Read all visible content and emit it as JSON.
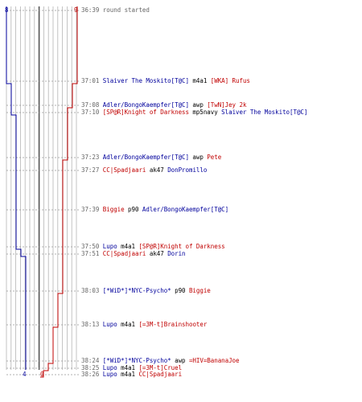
{
  "scores": {
    "blue_start": "8",
    "red_start": "9",
    "blue_end": "4",
    "red_end": "0"
  },
  "colors": {
    "blue_team": "#00009c",
    "red_team": "#c00000",
    "gridline": "#aaaaaa",
    "axis": "#555555"
  },
  "events": [
    {
      "time": "36:39",
      "parts": [
        {
          "text": "round started",
          "c": "note"
        }
      ]
    },
    {
      "time": "37:01",
      "parts": [
        {
          "text": "Slaiver The Moskito[T@C]",
          "c": "blue"
        },
        {
          "text": " m4a1 ",
          "c": "blk"
        },
        {
          "text": "[WKA] Rufus",
          "c": "red"
        }
      ]
    },
    {
      "time": "37:08",
      "parts": [
        {
          "text": "Adler/BongoKaempfer[T@C]",
          "c": "blue"
        },
        {
          "text": " awp ",
          "c": "blk"
        },
        {
          "text": "[TwN]Jey 2k",
          "c": "red"
        }
      ]
    },
    {
      "time": "37:10",
      "parts": [
        {
          "text": "[SP@R]Knight of Darkness",
          "c": "red"
        },
        {
          "text": " mp5navy ",
          "c": "blk"
        },
        {
          "text": "Slaiver The Moskito[T@C]",
          "c": "blue"
        }
      ]
    },
    {
      "time": "37:23",
      "parts": [
        {
          "text": "Adler/BongoKaempfer[T@C]",
          "c": "blue"
        },
        {
          "text": " awp ",
          "c": "blk"
        },
        {
          "text": "Pete",
          "c": "red"
        }
      ]
    },
    {
      "time": "37:27",
      "parts": [
        {
          "text": "CC|Spadjaari",
          "c": "red"
        },
        {
          "text": " ak47 ",
          "c": "blk"
        },
        {
          "text": "DonPromillo",
          "c": "blue"
        }
      ]
    },
    {
      "time": "37:39",
      "parts": [
        {
          "text": "Biggie",
          "c": "red"
        },
        {
          "text": " p90 ",
          "c": "blk"
        },
        {
          "text": "Adler/BongoKaempfer[T@C]",
          "c": "blue"
        }
      ]
    },
    {
      "time": "37:50",
      "parts": [
        {
          "text": "Lupo",
          "c": "blue"
        },
        {
          "text": " m4a1 ",
          "c": "blk"
        },
        {
          "text": "[SP@R]Knight of Darkness",
          "c": "red"
        }
      ]
    },
    {
      "time": "37:51",
      "parts": [
        {
          "text": "CC|Spadjaari",
          "c": "red"
        },
        {
          "text": " ak47 ",
          "c": "blk"
        },
        {
          "text": "Dorin",
          "c": "blue"
        }
      ]
    },
    {
      "time": "38:03",
      "parts": [
        {
          "text": "[*WiD*]*NYC-Psycho*",
          "c": "blue"
        },
        {
          "text": " p90 ",
          "c": "blk"
        },
        {
          "text": "Biggie",
          "c": "red"
        }
      ]
    },
    {
      "time": "38:13",
      "parts": [
        {
          "text": "Lupo",
          "c": "blue"
        },
        {
          "text": " m4a1 ",
          "c": "blk"
        },
        {
          "text": "[=3M-t]Brainshooter",
          "c": "red"
        }
      ]
    },
    {
      "time": "38:24",
      "parts": [
        {
          "text": "[*WiD*]*NYC-Psycho*",
          "c": "blue"
        },
        {
          "text": " awp ",
          "c": "blk"
        },
        {
          "text": "=HIV=BananaJoe",
          "c": "red"
        }
      ]
    },
    {
      "time": "38:25",
      "parts": [
        {
          "text": "Lupo",
          "c": "blue"
        },
        {
          "text": " m4a1 ",
          "c": "blk"
        },
        {
          "text": "[=3M-t]Cruel",
          "c": "red"
        }
      ]
    },
    {
      "time": "38:26",
      "parts": [
        {
          "text": "Lupo",
          "c": "blue"
        },
        {
          "text": " m4a1 ",
          "c": "blk"
        },
        {
          "text": "CC|Spadjaari",
          "c": "red"
        }
      ]
    }
  ]
}
